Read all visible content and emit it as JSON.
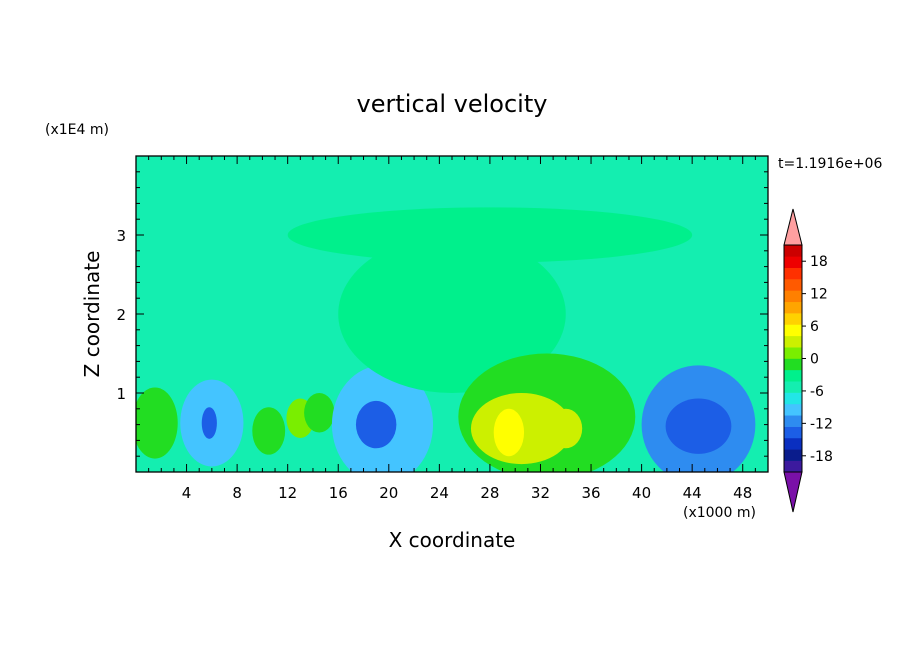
{
  "chart_data": {
    "type": "heatmap",
    "title": "vertical velocity",
    "xlabel": "X coordinate",
    "ylabel": "Z coordinate",
    "x_unit_label": "(x1000 m)",
    "y_unit_label": "(x1E4 m)",
    "time_label": "t=1.1916e+06",
    "xlim": [
      0,
      50
    ],
    "ylim": [
      0,
      4
    ],
    "x_ticks": [
      4,
      8,
      12,
      16,
      20,
      24,
      28,
      32,
      36,
      40,
      44,
      48
    ],
    "x_tick_labels": [
      "4",
      "8",
      "12",
      "16",
      "20",
      "24",
      "28",
      "32",
      "36",
      "40",
      "44",
      "48"
    ],
    "y_ticks": [
      1,
      2,
      3
    ],
    "y_tick_labels": [
      "1",
      "2",
      "3"
    ],
    "background_value": 0,
    "colorbar": {
      "min": -21,
      "max": 21,
      "step": 3,
      "tick_values": [
        18,
        12,
        6,
        0,
        -6,
        -12,
        -18
      ],
      "tick_labels": [
        "18",
        "12",
        "6",
        "0",
        "-6",
        "-12",
        "-18"
      ],
      "extend": "both",
      "colors_low_to_high": [
        "#7a10a8",
        "#3c1a9e",
        "#0a1c8c",
        "#0a2fc0",
        "#1c5ee6",
        "#2e8cf0",
        "#44c4ff",
        "#22e6e6",
        "#14eeb0",
        "#00f08c",
        "#22dd22",
        "#7aee00",
        "#ccf000",
        "#ffff00",
        "#ffd200",
        "#ffa500",
        "#ff8000",
        "#ff5a00",
        "#ff3000",
        "#ee0000",
        "#cc0000",
        "#ff9fa0"
      ]
    },
    "contour_features": [
      {
        "x": 1.5,
        "z": 0.62,
        "rx": 1.8,
        "rz": 0.45,
        "value": 6
      },
      {
        "x": 6.0,
        "z": 0.62,
        "rx": 2.5,
        "rz": 0.55,
        "value": -6
      },
      {
        "x": 5.8,
        "z": 0.62,
        "rx": 0.6,
        "rz": 0.2,
        "value": -12
      },
      {
        "x": 10.5,
        "z": 0.52,
        "rx": 1.3,
        "rz": 0.3,
        "value": 6
      },
      {
        "x": 13.0,
        "z": 0.68,
        "rx": 1.1,
        "rz": 0.25,
        "value": 9
      },
      {
        "x": 14.5,
        "z": 0.75,
        "rx": 1.2,
        "rz": 0.25,
        "value": 6
      },
      {
        "x": 19.5,
        "z": 0.6,
        "rx": 4.0,
        "rz": 0.75,
        "value": -6
      },
      {
        "x": 19.0,
        "z": 0.6,
        "rx": 1.6,
        "rz": 0.3,
        "value": -12
      },
      {
        "x": 25.0,
        "z": 2.0,
        "rx": 9.0,
        "rz": 1.0,
        "value": 3
      },
      {
        "x": 32.5,
        "z": 0.7,
        "rx": 7.0,
        "rz": 0.8,
        "value": 6
      },
      {
        "x": 30.5,
        "z": 0.55,
        "rx": 4.0,
        "rz": 0.45,
        "value": 12
      },
      {
        "x": 29.5,
        "z": 0.5,
        "rx": 1.2,
        "rz": 0.3,
        "value": 15
      },
      {
        "x": 34.0,
        "z": 0.55,
        "rx": 1.3,
        "rz": 0.25,
        "value": 12
      },
      {
        "x": 44.5,
        "z": 0.6,
        "rx": 4.5,
        "rz": 0.75,
        "value": -9
      },
      {
        "x": 44.5,
        "z": 0.58,
        "rx": 2.6,
        "rz": 0.35,
        "value": -12
      },
      {
        "x": 28.0,
        "z": 3.0,
        "rx": 16.0,
        "rz": 0.35,
        "value": 3
      }
    ]
  }
}
